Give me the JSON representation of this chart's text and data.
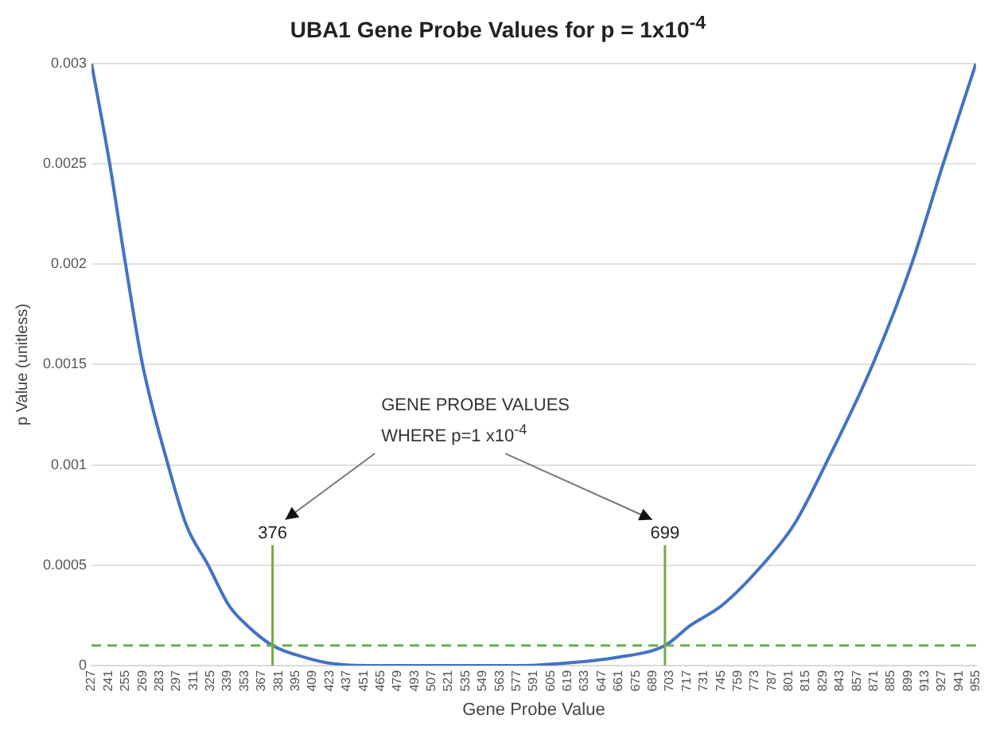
{
  "chart_data": {
    "type": "line",
    "title": "UBA1 Gene Probe Values for p = 1x10$^{-4}$",
    "xlabel": "Gene Probe Value",
    "ylabel": "p Value (unitless)",
    "annotations": [
      "GENE PROBE VALUES\nWHERE p=1 x10$^{-4}$"
    ],
    "x": [
      227,
      242,
      255,
      269,
      290,
      305,
      323,
      340,
      355,
      376,
      403,
      425,
      460,
      540,
      580,
      612,
      659,
      699,
      720,
      746,
      779,
      805,
      831,
      870,
      902,
      928,
      955
    ],
    "series": [
      {
        "color": "#4472c4",
        "values": [
          0.003,
          0.0025,
          0.002,
          0.0015,
          0.001,
          0.0007,
          0.0005,
          0.0003,
          0.0002,
          0.0001,
          4e-05,
          1e-05,
          0,
          0,
          0,
          1e-05,
          4e-05,
          0.0001,
          0.0002,
          0.0003,
          0.0005,
          0.0007,
          0.001,
          0.0015,
          0.002,
          0.0025,
          0.003
        ]
      }
    ],
    "xlim": [
      227,
      955
    ],
    "xticks": [
      227,
      241,
      255,
      269,
      283,
      297,
      311,
      325,
      339,
      353,
      367,
      381,
      395,
      409,
      423,
      437,
      451,
      465,
      479,
      493,
      507,
      521,
      535,
      549,
      563,
      577,
      591,
      605,
      619,
      633,
      647,
      661,
      675,
      689,
      703,
      717,
      731,
      745,
      759,
      773,
      787,
      801,
      815,
      829,
      843,
      857,
      871,
      885,
      899,
      913,
      927,
      941,
      955
    ],
    "ylim": [
      0,
      0.003
    ],
    "yticks": [
      0,
      0.0005,
      0.001,
      0.0015,
      0.002,
      0.0025,
      0.003
    ],
    "grid": "y",
    "legend": false,
    "marker": "none",
    "line_style": "solid",
    "ref_lines": [
      {
        "axis": "y",
        "value": 0.0001,
        "color": "#70ad47",
        "line_style": "dashed"
      },
      {
        "axis": "x",
        "value": 376,
        "label": "376",
        "color": "#70ad47",
        "line_style": "solid"
      },
      {
        "axis": "x",
        "value": 699,
        "label": "699",
        "color": "#70ad47",
        "line_style": "solid"
      }
    ]
  }
}
